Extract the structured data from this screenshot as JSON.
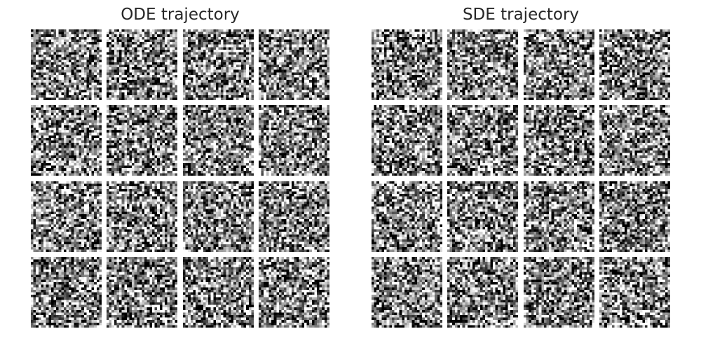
{
  "figure": {
    "panels": [
      {
        "id": "ode",
        "title": "ODE trajectory",
        "grid_rows": 4,
        "grid_cols": 4,
        "tile_resolution": 28,
        "content": "grayscale noise samples",
        "seed": 11
      },
      {
        "id": "sde",
        "title": "SDE trajectory",
        "grid_rows": 4,
        "grid_cols": 4,
        "tile_resolution": 28,
        "content": "grayscale noise samples",
        "seed": 29
      }
    ],
    "colors": {
      "background": "#ffffff",
      "title": "#262626",
      "pixel_min": "#000000",
      "pixel_max": "#ffffff"
    }
  }
}
